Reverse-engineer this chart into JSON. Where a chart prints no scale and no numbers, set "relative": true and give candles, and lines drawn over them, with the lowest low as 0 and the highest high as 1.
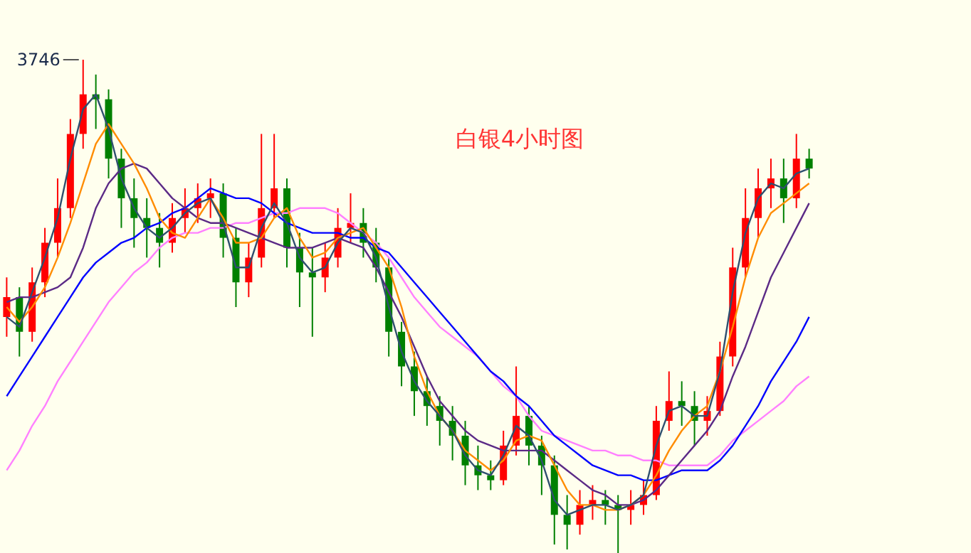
{
  "chart_data": {
    "type": "candlestick",
    "relative": true,
    "title": "白银4小时图",
    "annotations": [
      "3746"
    ],
    "categories": [
      null,
      null,
      null,
      null,
      null,
      null,
      null,
      null,
      null,
      null,
      null,
      null,
      null,
      null,
      null,
      null,
      null,
      null,
      null,
      null,
      null,
      null,
      null,
      null,
      null,
      null,
      null,
      null,
      null,
      null,
      null,
      null,
      null,
      null,
      null,
      null,
      null,
      null,
      null,
      null,
      null,
      null,
      null,
      null,
      null,
      null,
      null,
      null,
      null,
      null,
      null,
      null,
      null,
      null,
      null,
      null,
      null,
      null,
      null,
      null,
      null,
      null,
      null,
      null
    ],
    "ohlc": [
      [
        0.48,
        0.56,
        0.44,
        0.52
      ],
      [
        0.52,
        0.54,
        0.4,
        0.45
      ],
      [
        0.45,
        0.58,
        0.43,
        0.55
      ],
      [
        0.55,
        0.66,
        0.52,
        0.63
      ],
      [
        0.63,
        0.76,
        0.6,
        0.7
      ],
      [
        0.7,
        0.88,
        0.68,
        0.85
      ],
      [
        0.85,
        1.0,
        0.82,
        0.93
      ],
      [
        0.93,
        0.97,
        0.86,
        0.92
      ],
      [
        0.92,
        0.94,
        0.76,
        0.8
      ],
      [
        0.8,
        0.82,
        0.66,
        0.72
      ],
      [
        0.72,
        0.76,
        0.62,
        0.68
      ],
      [
        0.68,
        0.72,
        0.6,
        0.66
      ],
      [
        0.66,
        0.69,
        0.58,
        0.63
      ],
      [
        0.63,
        0.71,
        0.61,
        0.68
      ],
      [
        0.68,
        0.74,
        0.65,
        0.7
      ],
      [
        0.7,
        0.75,
        0.67,
        0.72
      ],
      [
        0.72,
        0.76,
        0.68,
        0.73
      ],
      [
        0.73,
        0.75,
        0.6,
        0.64
      ],
      [
        0.64,
        0.66,
        0.5,
        0.55
      ],
      [
        0.55,
        0.63,
        0.52,
        0.6
      ],
      [
        0.6,
        0.85,
        0.58,
        0.7
      ],
      [
        0.7,
        0.85,
        0.68,
        0.74
      ],
      [
        0.74,
        0.76,
        0.58,
        0.62
      ],
      [
        0.62,
        0.65,
        0.5,
        0.57
      ],
      [
        0.57,
        0.62,
        0.44,
        0.56
      ],
      [
        0.56,
        0.63,
        0.53,
        0.6
      ],
      [
        0.6,
        0.7,
        0.58,
        0.66
      ],
      [
        0.66,
        0.73,
        0.63,
        0.67
      ],
      [
        0.67,
        0.7,
        0.6,
        0.63
      ],
      [
        0.63,
        0.66,
        0.55,
        0.58
      ],
      [
        0.58,
        0.6,
        0.4,
        0.45
      ],
      [
        0.45,
        0.47,
        0.34,
        0.38
      ],
      [
        0.38,
        0.41,
        0.28,
        0.33
      ],
      [
        0.33,
        0.36,
        0.26,
        0.3
      ],
      [
        0.3,
        0.32,
        0.22,
        0.27
      ],
      [
        0.27,
        0.3,
        0.19,
        0.24
      ],
      [
        0.24,
        0.27,
        0.14,
        0.18
      ],
      [
        0.18,
        0.22,
        0.13,
        0.16
      ],
      [
        0.16,
        0.19,
        0.13,
        0.15
      ],
      [
        0.15,
        0.25,
        0.14,
        0.22
      ],
      [
        0.22,
        0.38,
        0.2,
        0.28
      ],
      [
        0.28,
        0.3,
        0.18,
        0.22
      ],
      [
        0.22,
        0.24,
        0.12,
        0.18
      ],
      [
        0.18,
        0.2,
        0.02,
        0.08
      ],
      [
        0.08,
        0.12,
        0.01,
        0.06
      ],
      [
        0.06,
        0.13,
        0.04,
        0.1
      ],
      [
        0.1,
        0.14,
        0.07,
        0.11
      ],
      [
        0.11,
        0.13,
        0.06,
        0.1
      ],
      [
        0.1,
        0.12,
        0.0,
        0.09
      ],
      [
        0.09,
        0.13,
        0.06,
        0.1
      ],
      [
        0.1,
        0.15,
        0.08,
        0.12
      ],
      [
        0.12,
        0.3,
        0.11,
        0.27
      ],
      [
        0.27,
        0.37,
        0.25,
        0.31
      ],
      [
        0.31,
        0.35,
        0.26,
        0.3
      ],
      [
        0.3,
        0.33,
        0.22,
        0.27
      ],
      [
        0.27,
        0.32,
        0.24,
        0.29
      ],
      [
        0.29,
        0.43,
        0.28,
        0.4
      ],
      [
        0.4,
        0.62,
        0.38,
        0.58
      ],
      [
        0.58,
        0.74,
        0.56,
        0.68
      ],
      [
        0.68,
        0.78,
        0.64,
        0.74
      ],
      [
        0.74,
        0.8,
        0.7,
        0.76
      ],
      [
        0.76,
        0.8,
        0.67,
        0.72
      ],
      [
        0.72,
        0.85,
        0.7,
        0.8
      ],
      [
        0.8,
        0.82,
        0.76,
        0.78
      ]
    ],
    "colors": [
      "#ff0000",
      "#008000",
      "#ff0000",
      "#ff0000",
      "#ff0000",
      "#ff0000",
      "#ff0000",
      "#008000",
      "#008000",
      "#008000",
      "#008000",
      "#008000",
      "#008000",
      "#ff0000",
      "#ff0000",
      "#ff0000",
      "#ff0000",
      "#008000",
      "#008000",
      "#ff0000",
      "#ff0000",
      "#ff0000",
      "#008000",
      "#008000",
      "#008000",
      "#ff0000",
      "#ff0000",
      "#ff0000",
      "#008000",
      "#008000",
      "#008000",
      "#008000",
      "#008000",
      "#008000",
      "#008000",
      "#008000",
      "#008000",
      "#008000",
      "#008000",
      "#ff0000",
      "#ff0000",
      "#008000",
      "#008000",
      "#008000",
      "#008000",
      "#ff0000",
      "#ff0000",
      "#008000",
      "#008000",
      "#ff0000",
      "#ff0000",
      "#ff0000",
      "#ff0000",
      "#008000",
      "#008000",
      "#ff0000",
      "#ff0000",
      "#ff0000",
      "#ff0000",
      "#ff0000",
      "#ff0000",
      "#008000",
      "#ff0000",
      "#008000"
    ],
    "series": [
      {
        "type": "line",
        "color": "#ff80ff",
        "values": [
          0.17,
          0.21,
          0.26,
          0.3,
          0.35,
          0.39,
          0.43,
          0.47,
          0.51,
          0.54,
          0.57,
          0.59,
          0.62,
          0.64,
          0.65,
          0.65,
          0.66,
          0.66,
          0.67,
          0.67,
          0.68,
          0.69,
          0.69,
          0.7,
          0.7,
          0.7,
          0.69,
          0.67,
          0.65,
          0.63,
          0.6,
          0.56,
          0.52,
          0.49,
          0.46,
          0.44,
          0.42,
          0.4,
          0.37,
          0.34,
          0.32,
          0.28,
          0.25,
          0.24,
          0.23,
          0.22,
          0.21,
          0.21,
          0.2,
          0.2,
          0.19,
          0.19,
          0.18,
          0.18,
          0.18,
          0.18,
          0.2,
          0.23,
          0.25,
          0.27,
          0.29,
          0.31,
          0.34,
          0.36
        ]
      },
      {
        "type": "line",
        "color": "#0000ff",
        "values": [
          0.32,
          0.36,
          0.4,
          0.44,
          0.48,
          0.52,
          0.56,
          0.59,
          0.61,
          0.63,
          0.64,
          0.66,
          0.67,
          0.69,
          0.7,
          0.72,
          0.74,
          0.73,
          0.72,
          0.72,
          0.71,
          0.69,
          0.67,
          0.66,
          0.65,
          0.65,
          0.65,
          0.64,
          0.64,
          0.62,
          0.61,
          0.58,
          0.55,
          0.52,
          0.49,
          0.46,
          0.43,
          0.4,
          0.37,
          0.35,
          0.32,
          0.3,
          0.27,
          0.24,
          0.22,
          0.2,
          0.18,
          0.17,
          0.16,
          0.16,
          0.15,
          0.15,
          0.16,
          0.17,
          0.17,
          0.17,
          0.19,
          0.22,
          0.26,
          0.3,
          0.35,
          0.39,
          0.43,
          0.48
        ]
      },
      {
        "type": "line",
        "color": "#5b2a86",
        "values": [
          0.51,
          0.52,
          0.52,
          0.53,
          0.54,
          0.56,
          0.62,
          0.7,
          0.75,
          0.78,
          0.79,
          0.78,
          0.75,
          0.72,
          0.7,
          0.68,
          0.67,
          0.67,
          0.66,
          0.65,
          0.64,
          0.63,
          0.62,
          0.62,
          0.62,
          0.63,
          0.64,
          0.63,
          0.62,
          0.58,
          0.53,
          0.48,
          0.42,
          0.36,
          0.31,
          0.28,
          0.25,
          0.23,
          0.22,
          0.21,
          0.21,
          0.21,
          0.21,
          0.19,
          0.17,
          0.15,
          0.13,
          0.12,
          0.1,
          0.1,
          0.11,
          0.13,
          0.16,
          0.19,
          0.22,
          0.25,
          0.29,
          0.36,
          0.42,
          0.49,
          0.56,
          0.61,
          0.66,
          0.71
        ]
      },
      {
        "type": "line",
        "color": "#ff8c00",
        "values": [
          0.5,
          0.47,
          0.5,
          0.54,
          0.6,
          0.67,
          0.75,
          0.83,
          0.87,
          0.83,
          0.79,
          0.74,
          0.68,
          0.65,
          0.64,
          0.68,
          0.72,
          0.68,
          0.63,
          0.63,
          0.64,
          0.68,
          0.7,
          0.64,
          0.6,
          0.61,
          0.64,
          0.65,
          0.66,
          0.62,
          0.58,
          0.5,
          0.4,
          0.33,
          0.28,
          0.25,
          0.21,
          0.19,
          0.17,
          0.19,
          0.23,
          0.24,
          0.23,
          0.18,
          0.13,
          0.1,
          0.1,
          0.09,
          0.09,
          0.1,
          0.12,
          0.16,
          0.21,
          0.25,
          0.28,
          0.3,
          0.37,
          0.46,
          0.56,
          0.64,
          0.69,
          0.71,
          0.73,
          0.75
        ]
      },
      {
        "type": "line",
        "color": "#2f4f6f",
        "values": [
          0.48,
          0.46,
          0.53,
          0.6,
          0.68,
          0.8,
          0.9,
          0.93,
          0.86,
          0.76,
          0.7,
          0.66,
          0.64,
          0.66,
          0.69,
          0.71,
          0.72,
          0.67,
          0.58,
          0.58,
          0.66,
          0.71,
          0.67,
          0.6,
          0.57,
          0.58,
          0.63,
          0.66,
          0.65,
          0.6,
          0.5,
          0.41,
          0.35,
          0.31,
          0.28,
          0.25,
          0.2,
          0.17,
          0.16,
          0.2,
          0.26,
          0.24,
          0.19,
          0.11,
          0.08,
          0.09,
          0.1,
          0.1,
          0.09,
          0.1,
          0.12,
          0.22,
          0.29,
          0.3,
          0.28,
          0.28,
          0.37,
          0.53,
          0.65,
          0.72,
          0.75,
          0.74,
          0.77,
          0.78
        ]
      }
    ]
  }
}
